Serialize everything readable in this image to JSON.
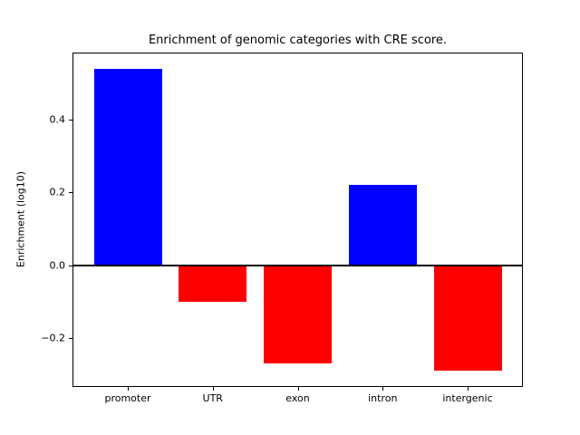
{
  "figure": {
    "background": "#ffffff",
    "title": "Enrichment of genomic categories with CRE score.",
    "ylabel": "Enrichment (log10)"
  },
  "chart_data": {
    "type": "bar",
    "title": "Enrichment of genomic categories with CRE score.",
    "xlabel": "",
    "ylabel": "Enrichment (log10)",
    "categories": [
      "promoter",
      "UTR",
      "exon",
      "intron",
      "intergenic"
    ],
    "values": [
      0.54,
      -0.1,
      -0.27,
      0.22,
      -0.29
    ],
    "bar_colors": [
      "#0000ff",
      "#ff0000",
      "#ff0000",
      "#0000ff",
      "#ff0000"
    ],
    "positive_color": "#0000ff",
    "negative_color": "#ff0000",
    "bar_width": 0.8,
    "xlim": [
      -0.64,
      4.64
    ],
    "ylim": [
      -0.3315,
      0.5815
    ],
    "yticks": [
      -0.2,
      0.0,
      0.2,
      0.4
    ],
    "ytick_labels": [
      "−0.2",
      "0.0",
      "0.2",
      "0.4"
    ],
    "grid": false,
    "zero_line": true,
    "legend": null,
    "axis_color": "#000000"
  }
}
